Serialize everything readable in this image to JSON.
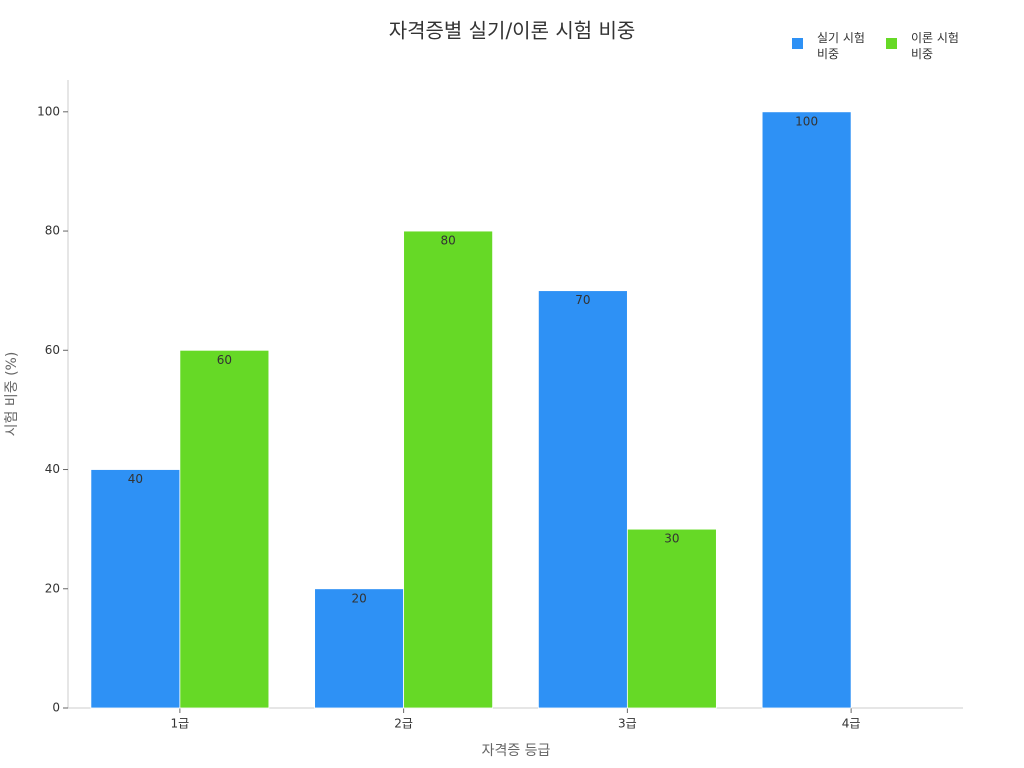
{
  "chart_data": {
    "type": "bar",
    "title": "자격증별 실기/이론 시험 비중",
    "x_label": "자격증 등급",
    "y_label": "시험 비중 (%)",
    "categories": [
      "1급",
      "2급",
      "3급",
      "4급"
    ],
    "series": [
      {
        "name": "실기 시험 비중",
        "color": "#2e91f5",
        "values": [
          40,
          20,
          70,
          100
        ]
      },
      {
        "name": "이론 시험 비중",
        "color": "#66d926",
        "values": [
          60,
          80,
          30,
          null
        ]
      }
    ],
    "ylim": [
      0,
      105
    ],
    "yticks": [
      0,
      20,
      40,
      60,
      80,
      100
    ],
    "legend": "top-right"
  }
}
